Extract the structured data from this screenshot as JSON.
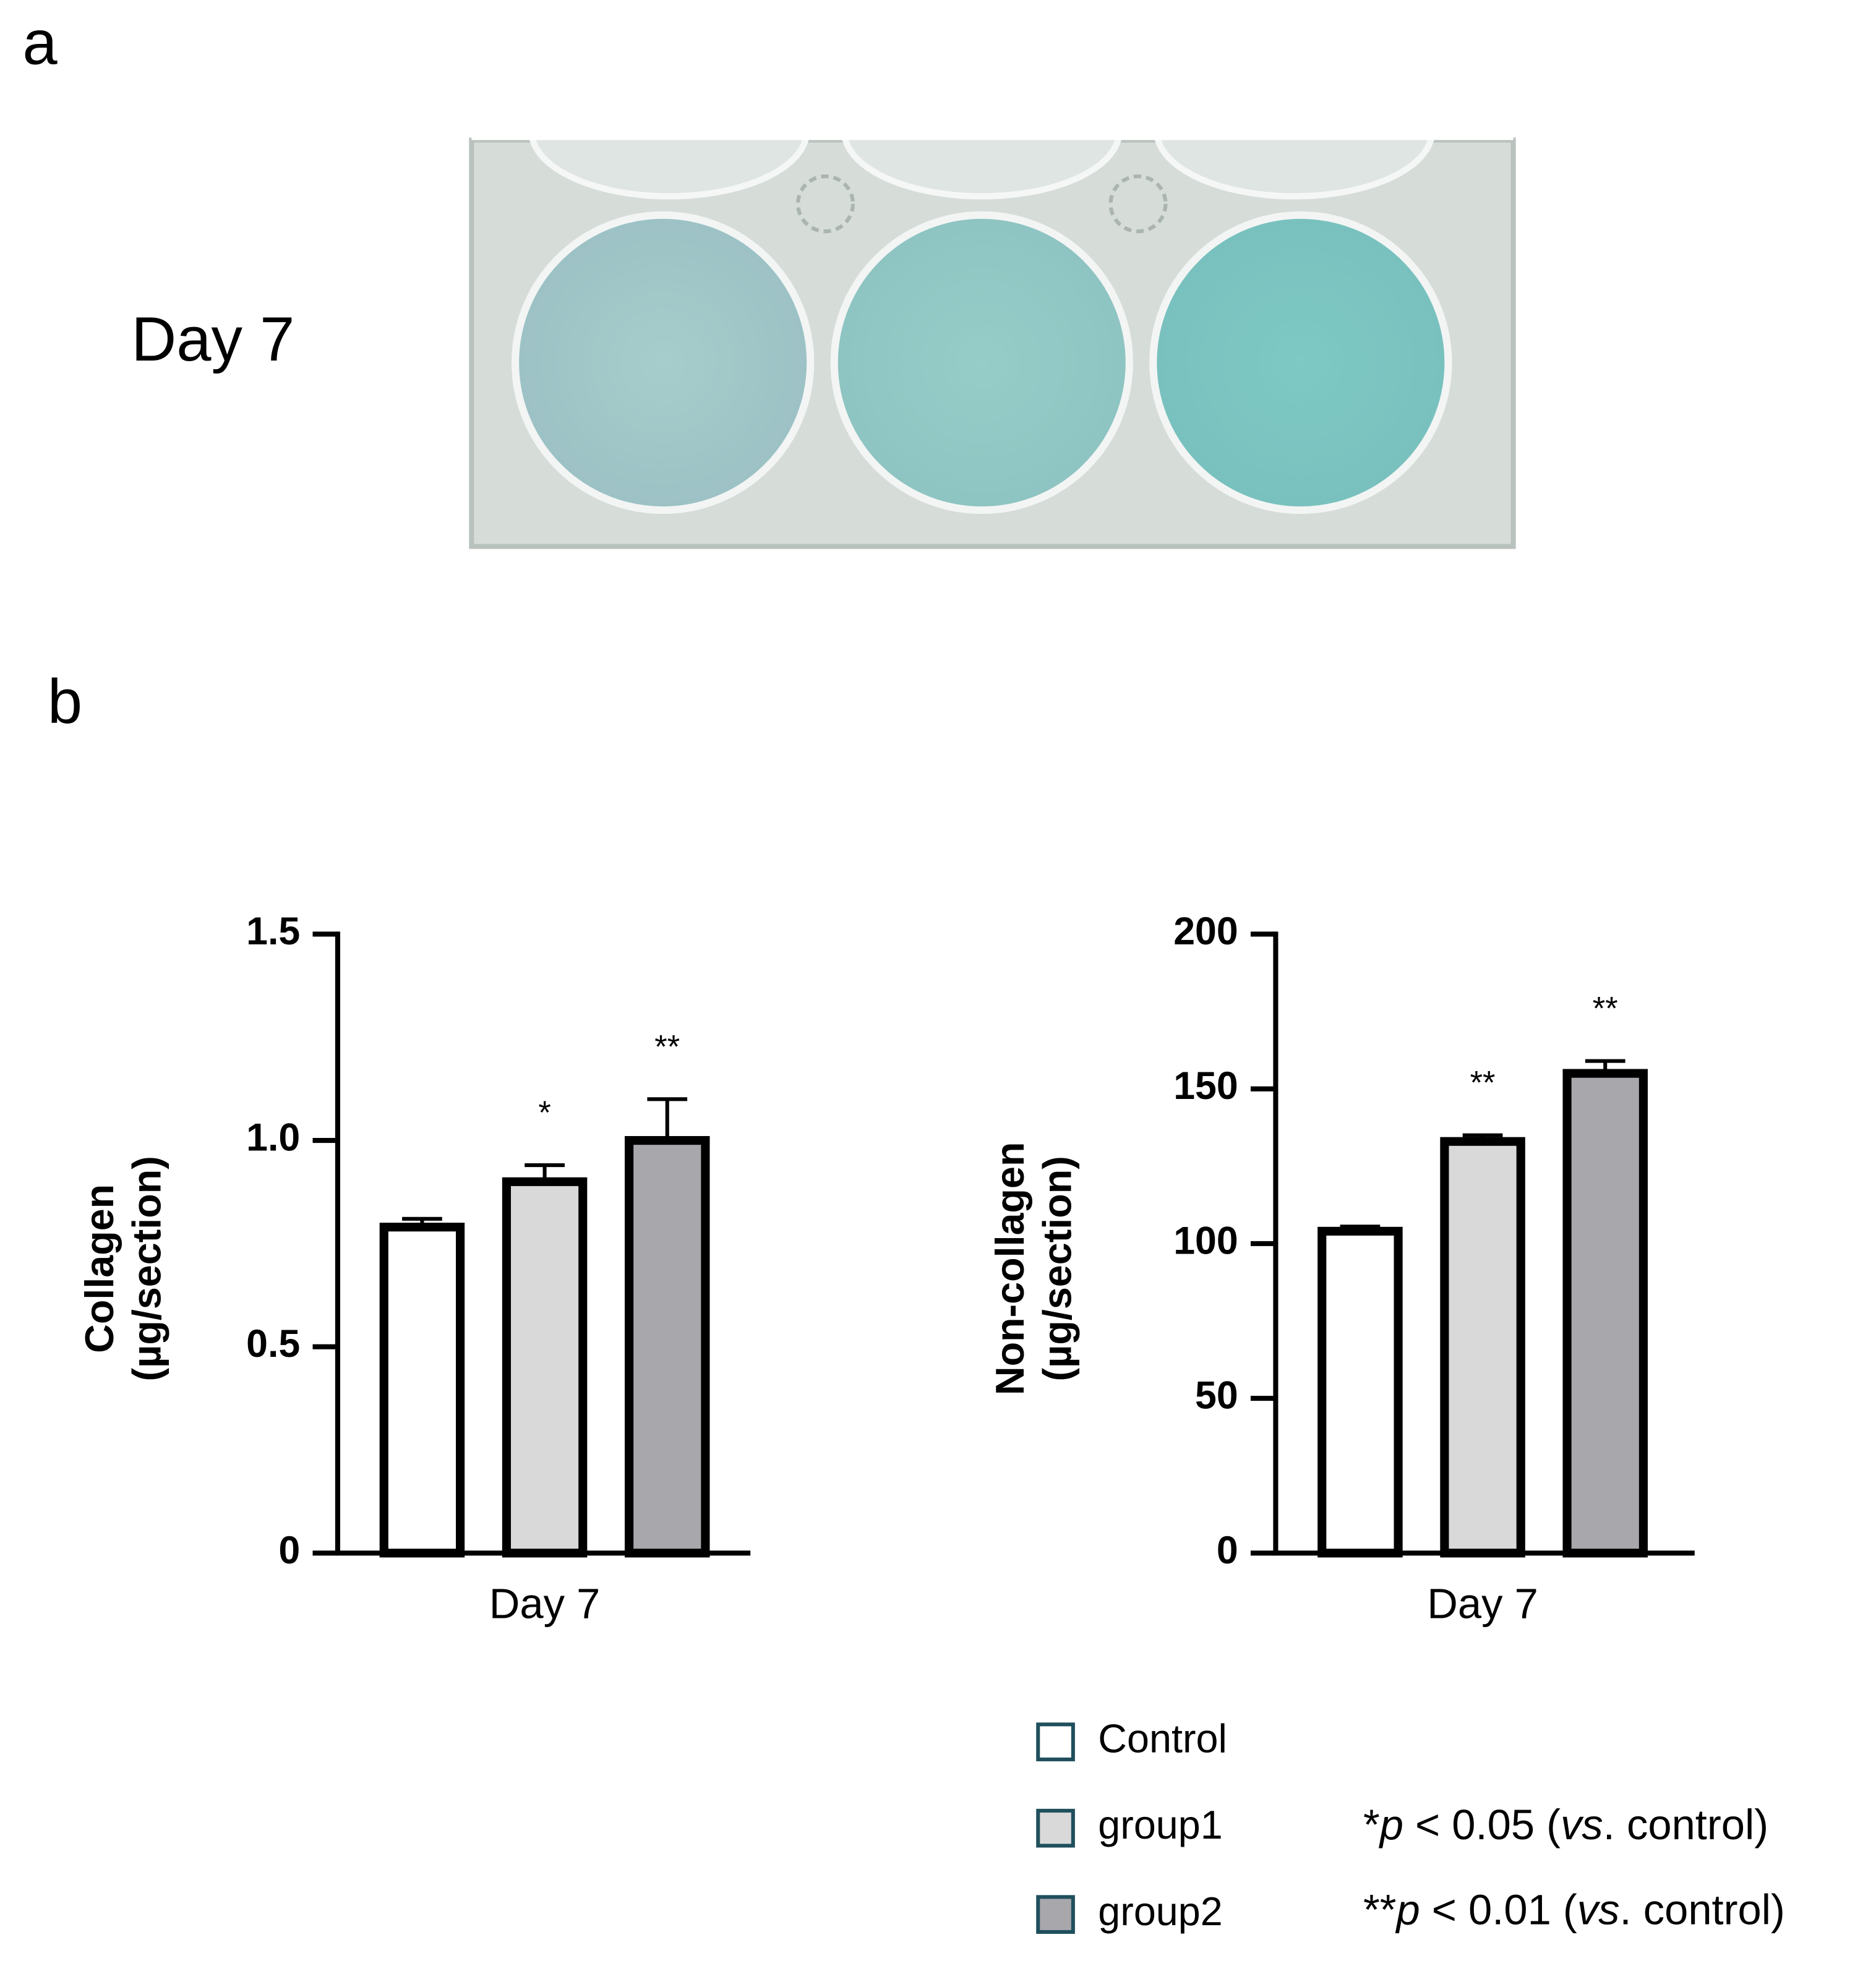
{
  "panel_labels": [
    "a",
    "b"
  ],
  "image_label": "Day 7",
  "chart_data": [
    {
      "type": "bar",
      "ylabel": [
        "Collagen",
        "(µg/section)"
      ],
      "categories": [
        "Day 7"
      ],
      "series": [
        {
          "name": "Control",
          "color": "#ffffff",
          "values": [
            0.79
          ],
          "errors": [
            0.02
          ]
        },
        {
          "name": "group1",
          "color": "#d9d9d9",
          "values": [
            0.9
          ],
          "errors": [
            0.04
          ],
          "annotation": "*"
        },
        {
          "name": "group2",
          "color": "#a7a7ac",
          "values": [
            1.0
          ],
          "errors": [
            0.1
          ],
          "annotation": "**"
        }
      ],
      "ylim": [
        0,
        1.5
      ],
      "yticks": [
        0,
        0.5,
        {
          "value": 1,
          "label": "1.0"
        },
        1.5
      ]
    },
    {
      "type": "bar",
      "ylabel": [
        "Non-collagen",
        "(µg/section)"
      ],
      "categories": [
        "Day 7"
      ],
      "series": [
        {
          "name": "Control",
          "color": "#ffffff",
          "values": [
            104
          ],
          "errors": [
            1.5
          ]
        },
        {
          "name": "group1",
          "color": "#d9d9d9",
          "values": [
            133
          ],
          "errors": [
            2
          ],
          "annotation": "**"
        },
        {
          "name": "group2",
          "color": "#a7a7ac",
          "values": [
            155
          ],
          "errors": [
            4
          ],
          "annotation": "**"
        }
      ],
      "ylim": [
        0,
        200
      ],
      "yticks": [
        0,
        50,
        100,
        150,
        200
      ]
    }
  ],
  "notes": [
    [
      {
        "text": "*"
      },
      {
        "text": "p",
        "italic": true
      },
      {
        "text": " < 0.05 ("
      },
      {
        "text": "vs",
        "italic": true
      },
      {
        "text": ". control)"
      }
    ],
    [
      {
        "text": "**"
      },
      {
        "text": "p",
        "italic": true
      },
      {
        "text": " < 0.01 ("
      },
      {
        "text": "vs",
        "italic": true
      },
      {
        "text": ". control)"
      }
    ]
  ]
}
